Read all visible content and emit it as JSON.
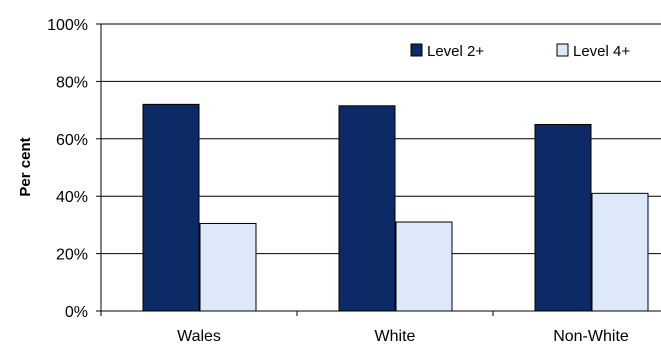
{
  "chart_data": {
    "type": "bar",
    "title": "",
    "xlabel": "",
    "ylabel": "Per cent",
    "categories": [
      "Wales",
      "White",
      "Non-White"
    ],
    "series": [
      {
        "name": "Level 2+",
        "values": [
          72,
          71.5,
          65
        ],
        "color": "#0b2a66"
      },
      {
        "name": "Level 4+",
        "values": [
          30.5,
          31,
          41
        ],
        "color": "#dde8fb"
      }
    ],
    "ylim": [
      0,
      100
    ],
    "yticks": [
      "0%",
      "20%",
      "40%",
      "60%",
      "80%",
      "100%"
    ],
    "ytick_values": [
      0,
      20,
      40,
      60,
      80,
      100
    ],
    "grid": true,
    "legend_position": "top-right"
  }
}
